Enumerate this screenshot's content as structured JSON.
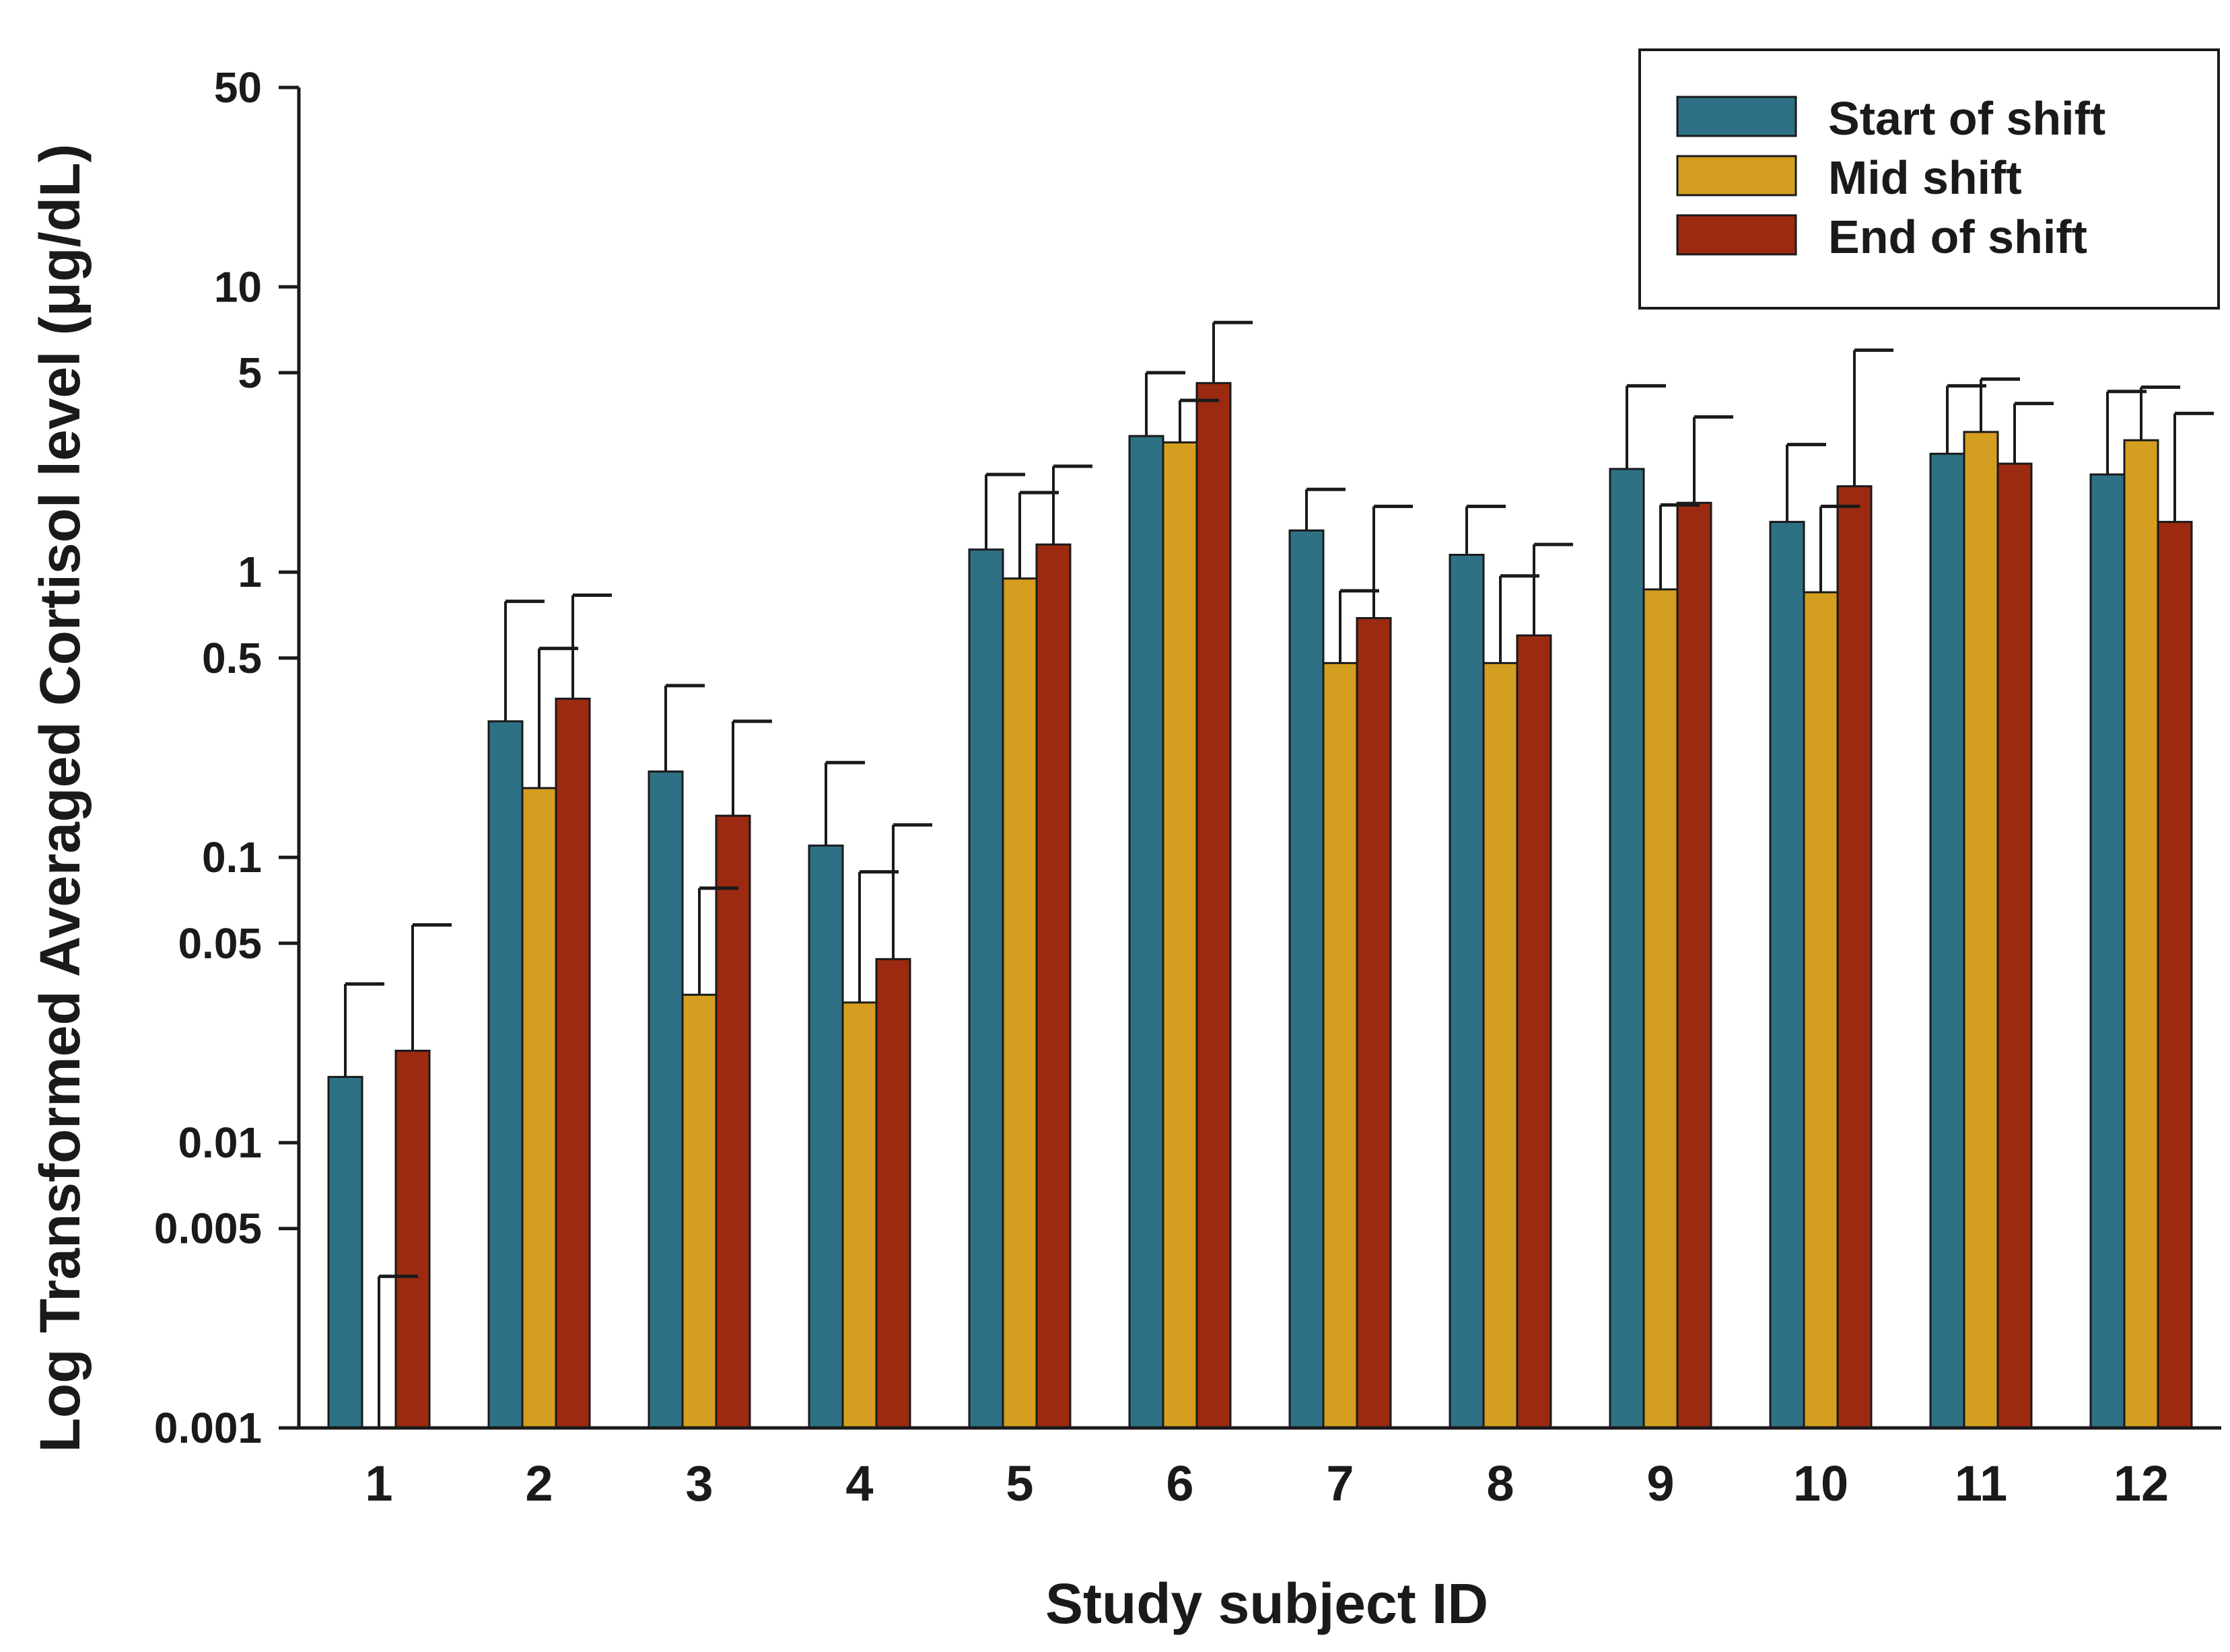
{
  "chart_data": {
    "type": "bar",
    "title": "",
    "xlabel": "Study subject ID",
    "ylabel": "Log Transformed Averaged Cortisol level (μg/dL)",
    "yscale": "log",
    "ylim": [
      0.001,
      50
    ],
    "yticks": [
      0.001,
      0.005,
      0.01,
      0.05,
      0.1,
      0.5,
      1,
      5,
      10,
      50
    ],
    "ytick_labels": [
      "0.001",
      "0.005",
      "0.01",
      "0.05",
      "0.1",
      "0.5",
      "1",
      "5",
      "10",
      "50"
    ],
    "categories": [
      "1",
      "2",
      "3",
      "4",
      "5",
      "6",
      "7",
      "8",
      "9",
      "10",
      "11",
      "12"
    ],
    "legend_position": "top-right",
    "grid": false,
    "series": [
      {
        "name": "Start of shift",
        "color": "#2e7185",
        "values": [
          0.017,
          0.3,
          0.2,
          0.11,
          1.2,
          3.0,
          1.4,
          1.15,
          2.3,
          1.5,
          2.6,
          2.2
        ],
        "error_upper": [
          0.036,
          0.79,
          0.4,
          0.215,
          2.2,
          5.0,
          1.95,
          1.7,
          4.5,
          2.8,
          4.5,
          4.3
        ]
      },
      {
        "name": "Mid shift",
        "color": "#d49e20",
        "values": [
          null,
          0.175,
          0.033,
          0.031,
          0.95,
          2.85,
          0.48,
          0.48,
          0.87,
          0.85,
          3.1,
          2.9
        ],
        "error_upper": [
          0.0034,
          0.54,
          0.078,
          0.089,
          1.9,
          4.0,
          0.86,
          0.97,
          1.72,
          1.7,
          4.75,
          4.45
        ]
      },
      {
        "name": "End of shift",
        "color": "#9c2a10",
        "values": [
          0.021,
          0.36,
          0.14,
          0.044,
          1.25,
          4.6,
          0.69,
          0.6,
          1.75,
          2.0,
          2.4,
          1.5
        ],
        "error_upper": [
          0.058,
          0.83,
          0.3,
          0.13,
          2.35,
          7.5,
          1.7,
          1.25,
          3.5,
          6.0,
          3.9,
          3.6
        ]
      }
    ]
  }
}
